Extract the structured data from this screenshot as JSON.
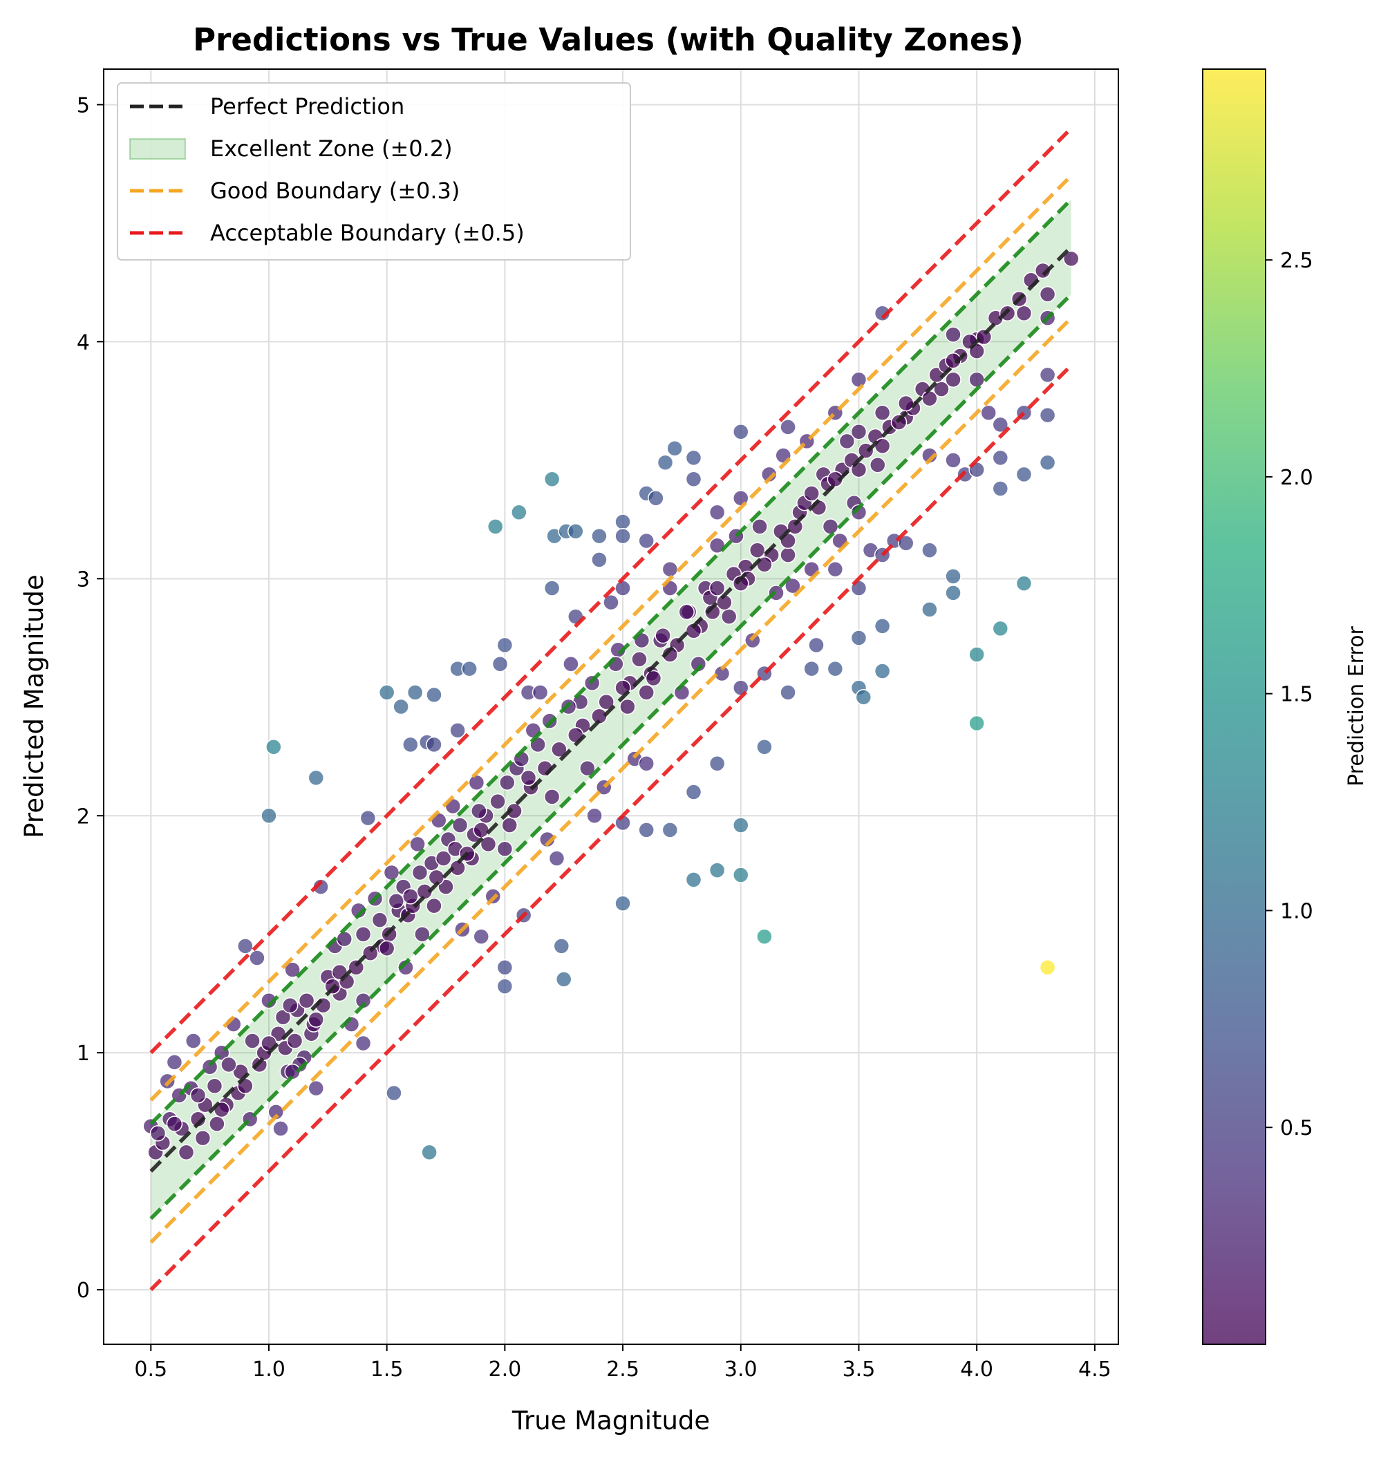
{
  "chart_data": {
    "type": "scatter",
    "title": "Predictions vs True Values (with Quality Zones)",
    "xlabel": "True Magnitude",
    "ylabel": "Predicted Magnitude",
    "xlim": [
      0.3,
      4.6
    ],
    "ylim": [
      -0.23,
      5.15
    ],
    "xticks": [
      0.5,
      1.0,
      1.5,
      2.0,
      2.5,
      3.0,
      3.5,
      4.0,
      4.5
    ],
    "xtick_labels": [
      "0.5",
      "1.0",
      "1.5",
      "2.0",
      "2.5",
      "3.0",
      "3.5",
      "4.0",
      "4.5"
    ],
    "yticks": [
      0,
      1,
      2,
      3,
      4,
      5
    ],
    "ytick_labels": [
      "0",
      "1",
      "2",
      "3",
      "4",
      "5"
    ],
    "grid": true,
    "legend_position": "top-left",
    "legend": [
      {
        "label": "Perfect Prediction",
        "style": "dashed-line",
        "color": "#222222"
      },
      {
        "label": "Excellent Zone (±0.2)",
        "style": "patch",
        "color": "#2ca02c"
      },
      {
        "label": "Good Boundary (±0.3)",
        "style": "dashed-line",
        "color": "#f5a623"
      },
      {
        "label": "Acceptable Boundary (±0.5)",
        "style": "dashed-line",
        "color": "#e8191b"
      }
    ],
    "reference_lines": {
      "x_range": [
        0.5,
        4.4
      ],
      "perfect_offset": 0,
      "excellent_band": 0.2,
      "good_offset": 0.3,
      "acceptable_offset": 0.5
    },
    "colors": {
      "perfect": "#222222",
      "excellent_fill": "#2ca02c",
      "excellent_line": "#1a8a1a",
      "good": "#f5a623",
      "acceptable": "#e8191b",
      "point_edge": "#ffffff"
    },
    "colorbar": {
      "label": "Prediction Error",
      "colormap": "viridis",
      "range": [
        0.0,
        2.94
      ],
      "ticks": [
        0.5,
        1.0,
        1.5,
        2.0,
        2.5
      ],
      "tick_labels": [
        "0.5",
        "1.0",
        "1.5",
        "2.0",
        "2.5"
      ]
    },
    "points": [
      [
        0.5,
        0.69
      ],
      [
        0.52,
        0.58
      ],
      [
        0.55,
        0.62
      ],
      [
        0.57,
        0.88
      ],
      [
        0.6,
        0.96
      ],
      [
        0.62,
        0.82
      ],
      [
        0.65,
        0.58
      ],
      [
        0.68,
        1.05
      ],
      [
        0.7,
        0.72
      ],
      [
        0.72,
        0.64
      ],
      [
        0.75,
        0.94
      ],
      [
        0.78,
        0.7
      ],
      [
        0.8,
        1.0
      ],
      [
        0.82,
        0.78
      ],
      [
        0.85,
        1.12
      ],
      [
        0.88,
        0.92
      ],
      [
        0.9,
        1.45
      ],
      [
        0.92,
        0.72
      ],
      [
        0.95,
        1.4
      ],
      [
        0.96,
        0.95
      ],
      [
        1.0,
        1.22
      ],
      [
        1.0,
        2.0
      ],
      [
        1.02,
        2.29
      ],
      [
        1.03,
        0.75
      ],
      [
        1.05,
        0.68
      ],
      [
        1.07,
        1.02
      ],
      [
        1.08,
        0.92
      ],
      [
        1.1,
        1.35
      ],
      [
        1.12,
        1.18
      ],
      [
        1.15,
        0.98
      ],
      [
        1.18,
        1.08
      ],
      [
        1.2,
        0.85
      ],
      [
        1.2,
        2.16
      ],
      [
        1.22,
        1.7
      ],
      [
        1.25,
        1.32
      ],
      [
        1.28,
        1.45
      ],
      [
        1.3,
        1.25
      ],
      [
        1.32,
        1.48
      ],
      [
        1.35,
        1.12
      ],
      [
        1.38,
        1.6
      ],
      [
        1.4,
        1.22
      ],
      [
        1.4,
        1.04
      ],
      [
        1.42,
        1.99
      ],
      [
        1.45,
        1.65
      ],
      [
        1.48,
        1.45
      ],
      [
        1.5,
        2.52
      ],
      [
        1.52,
        1.76
      ],
      [
        1.53,
        0.83
      ],
      [
        1.55,
        1.6
      ],
      [
        1.56,
        2.46
      ],
      [
        1.58,
        1.36
      ],
      [
        1.6,
        2.3
      ],
      [
        1.62,
        2.52
      ],
      [
        1.63,
        1.88
      ],
      [
        1.65,
        1.5
      ],
      [
        1.67,
        2.31
      ],
      [
        1.68,
        0.58
      ],
      [
        1.7,
        2.51
      ],
      [
        1.7,
        2.3
      ],
      [
        1.72,
        1.98
      ],
      [
        1.75,
        1.7
      ],
      [
        1.78,
        2.04
      ],
      [
        1.8,
        2.62
      ],
      [
        1.8,
        2.36
      ],
      [
        1.82,
        1.52
      ],
      [
        1.85,
        2.62
      ],
      [
        1.86,
        1.82
      ],
      [
        1.88,
        2.14
      ],
      [
        1.9,
        1.49
      ],
      [
        1.92,
        2.0
      ],
      [
        1.95,
        1.66
      ],
      [
        1.96,
        3.22
      ],
      [
        1.98,
        2.64
      ],
      [
        2.0,
        2.72
      ],
      [
        2.0,
        1.28
      ],
      [
        2.0,
        1.36
      ],
      [
        2.02,
        1.96
      ],
      [
        2.05,
        2.2
      ],
      [
        2.06,
        3.28
      ],
      [
        2.08,
        1.58
      ],
      [
        2.1,
        2.52
      ],
      [
        2.12,
        2.36
      ],
      [
        2.15,
        2.52
      ],
      [
        2.18,
        1.9
      ],
      [
        2.2,
        2.96
      ],
      [
        2.2,
        3.42
      ],
      [
        2.21,
        3.18
      ],
      [
        2.22,
        1.82
      ],
      [
        2.24,
        1.45
      ],
      [
        2.25,
        1.31
      ],
      [
        2.26,
        3.2
      ],
      [
        2.28,
        2.64
      ],
      [
        2.3,
        2.84
      ],
      [
        2.3,
        3.2
      ],
      [
        2.32,
        2.48
      ],
      [
        2.35,
        2.2
      ],
      [
        2.38,
        2.0
      ],
      [
        2.4,
        3.08
      ],
      [
        2.4,
        3.18
      ],
      [
        2.42,
        2.12
      ],
      [
        2.45,
        2.9
      ],
      [
        2.48,
        2.7
      ],
      [
        2.5,
        3.24
      ],
      [
        2.5,
        3.18
      ],
      [
        2.5,
        2.96
      ],
      [
        2.5,
        1.97
      ],
      [
        2.5,
        1.63
      ],
      [
        2.52,
        2.46
      ],
      [
        2.55,
        2.24
      ],
      [
        2.58,
        2.74
      ],
      [
        2.6,
        3.16
      ],
      [
        2.6,
        3.36
      ],
      [
        2.6,
        2.22
      ],
      [
        2.6,
        1.94
      ],
      [
        2.62,
        2.6
      ],
      [
        2.64,
        3.34
      ],
      [
        2.66,
        2.74
      ],
      [
        2.68,
        3.49
      ],
      [
        2.7,
        2.96
      ],
      [
        2.7,
        3.04
      ],
      [
        2.7,
        1.94
      ],
      [
        2.72,
        3.55
      ],
      [
        2.75,
        2.52
      ],
      [
        2.78,
        2.86
      ],
      [
        2.8,
        3.51
      ],
      [
        2.8,
        3.42
      ],
      [
        2.8,
        2.1
      ],
      [
        2.8,
        1.73
      ],
      [
        2.82,
        2.64
      ],
      [
        2.85,
        2.96
      ],
      [
        2.88,
        2.86
      ],
      [
        2.9,
        3.28
      ],
      [
        2.9,
        3.14
      ],
      [
        2.9,
        2.22
      ],
      [
        2.9,
        1.77
      ],
      [
        2.92,
        2.6
      ],
      [
        2.95,
        2.84
      ],
      [
        2.98,
        3.18
      ],
      [
        3.0,
        3.62
      ],
      [
        3.0,
        3.34
      ],
      [
        3.0,
        2.54
      ],
      [
        3.0,
        1.96
      ],
      [
        3.0,
        1.75
      ],
      [
        3.02,
        3.05
      ],
      [
        3.05,
        2.74
      ],
      [
        3.08,
        3.22
      ],
      [
        3.1,
        2.6
      ],
      [
        3.1,
        2.29
      ],
      [
        3.1,
        1.49
      ],
      [
        3.12,
        3.44
      ],
      [
        3.15,
        2.94
      ],
      [
        3.18,
        3.52
      ],
      [
        3.2,
        3.64
      ],
      [
        3.2,
        3.1
      ],
      [
        3.2,
        2.52
      ],
      [
        3.22,
        2.97
      ],
      [
        3.25,
        3.28
      ],
      [
        3.28,
        3.58
      ],
      [
        3.3,
        3.04
      ],
      [
        3.3,
        2.62
      ],
      [
        3.32,
        2.72
      ],
      [
        3.35,
        3.44
      ],
      [
        3.38,
        3.22
      ],
      [
        3.4,
        3.7
      ],
      [
        3.4,
        3.04
      ],
      [
        3.4,
        2.62
      ],
      [
        3.42,
        3.16
      ],
      [
        3.45,
        3.58
      ],
      [
        3.48,
        3.32
      ],
      [
        3.5,
        3.84
      ],
      [
        3.5,
        3.62
      ],
      [
        3.5,
        3.28
      ],
      [
        3.5,
        2.96
      ],
      [
        3.5,
        2.75
      ],
      [
        3.5,
        2.54
      ],
      [
        3.52,
        2.5
      ],
      [
        3.55,
        3.12
      ],
      [
        3.58,
        3.48
      ],
      [
        3.6,
        4.12
      ],
      [
        3.6,
        3.7
      ],
      [
        3.6,
        3.1
      ],
      [
        3.6,
        2.8
      ],
      [
        3.6,
        2.61
      ],
      [
        3.65,
        3.16
      ],
      [
        3.7,
        3.68
      ],
      [
        3.7,
        3.15
      ],
      [
        3.8,
        3.52
      ],
      [
        3.8,
        3.12
      ],
      [
        3.8,
        2.87
      ],
      [
        3.85,
        3.8
      ],
      [
        3.9,
        4.03
      ],
      [
        3.9,
        3.84
      ],
      [
        3.9,
        3.5
      ],
      [
        3.9,
        3.01
      ],
      [
        3.9,
        2.94
      ],
      [
        3.95,
        3.44
      ],
      [
        4.0,
        4.01
      ],
      [
        4.0,
        3.84
      ],
      [
        4.0,
        3.46
      ],
      [
        4.0,
        2.68
      ],
      [
        4.0,
        2.39
      ],
      [
        4.05,
        3.7
      ],
      [
        4.1,
        3.65
      ],
      [
        4.1,
        3.51
      ],
      [
        4.1,
        3.38
      ],
      [
        4.1,
        2.79
      ],
      [
        4.2,
        4.12
      ],
      [
        4.2,
        3.7
      ],
      [
        4.2,
        3.44
      ],
      [
        4.2,
        2.98
      ],
      [
        4.3,
        4.2
      ],
      [
        4.3,
        4.1
      ],
      [
        4.3,
        3.86
      ],
      [
        4.3,
        3.69
      ],
      [
        4.3,
        3.49
      ],
      [
        4.3,
        1.36
      ],
      [
        4.4,
        4.35
      ],
      [
        0.53,
        0.66
      ],
      [
        0.58,
        0.72
      ],
      [
        0.63,
        0.68
      ],
      [
        0.67,
        0.85
      ],
      [
        0.73,
        0.78
      ],
      [
        0.77,
        0.86
      ],
      [
        0.83,
        0.95
      ],
      [
        0.87,
        0.83
      ],
      [
        0.93,
        1.05
      ],
      [
        0.98,
        1.0
      ],
      [
        1.04,
        1.08
      ],
      [
        1.06,
        1.15
      ],
      [
        1.09,
        1.2
      ],
      [
        1.11,
        1.05
      ],
      [
        1.13,
        0.95
      ],
      [
        1.16,
        1.22
      ],
      [
        1.19,
        1.12
      ],
      [
        1.23,
        1.2
      ],
      [
        1.27,
        1.28
      ],
      [
        1.33,
        1.3
      ],
      [
        1.37,
        1.36
      ],
      [
        1.43,
        1.42
      ],
      [
        1.47,
        1.56
      ],
      [
        1.51,
        1.5
      ],
      [
        1.54,
        1.64
      ],
      [
        1.57,
        1.7
      ],
      [
        1.59,
        1.58
      ],
      [
        1.61,
        1.62
      ],
      [
        1.64,
        1.76
      ],
      [
        1.66,
        1.68
      ],
      [
        1.69,
        1.8
      ],
      [
        1.71,
        1.74
      ],
      [
        1.74,
        1.82
      ],
      [
        1.76,
        1.9
      ],
      [
        1.79,
        1.86
      ],
      [
        1.81,
        1.96
      ],
      [
        1.84,
        1.84
      ],
      [
        1.87,
        1.92
      ],
      [
        1.89,
        2.02
      ],
      [
        1.93,
        1.88
      ],
      [
        1.97,
        2.06
      ],
      [
        2.01,
        2.14
      ],
      [
        2.04,
        2.02
      ],
      [
        2.07,
        2.24
      ],
      [
        2.11,
        2.12
      ],
      [
        2.14,
        2.3
      ],
      [
        2.17,
        2.2
      ],
      [
        2.19,
        2.4
      ],
      [
        2.23,
        2.28
      ],
      [
        2.27,
        2.46
      ],
      [
        2.33,
        2.38
      ],
      [
        2.37,
        2.56
      ],
      [
        2.43,
        2.48
      ],
      [
        2.47,
        2.64
      ],
      [
        2.53,
        2.56
      ],
      [
        2.57,
        2.66
      ],
      [
        2.63,
        2.58
      ],
      [
        2.67,
        2.76
      ],
      [
        2.73,
        2.72
      ],
      [
        2.77,
        2.86
      ],
      [
        2.83,
        2.8
      ],
      [
        2.87,
        2.92
      ],
      [
        2.93,
        2.9
      ],
      [
        2.97,
        3.02
      ],
      [
        3.03,
        3.0
      ],
      [
        3.07,
        3.12
      ],
      [
        3.13,
        3.1
      ],
      [
        3.17,
        3.2
      ],
      [
        3.23,
        3.22
      ],
      [
        3.27,
        3.32
      ],
      [
        3.33,
        3.3
      ],
      [
        3.37,
        3.4
      ],
      [
        3.43,
        3.46
      ],
      [
        3.47,
        3.5
      ],
      [
        3.53,
        3.54
      ],
      [
        3.57,
        3.6
      ],
      [
        3.63,
        3.64
      ],
      [
        3.67,
        3.66
      ],
      [
        3.73,
        3.72
      ],
      [
        3.77,
        3.8
      ],
      [
        3.83,
        3.86
      ],
      [
        3.87,
        3.9
      ],
      [
        3.93,
        3.94
      ],
      [
        3.97,
        4.0
      ],
      [
        4.03,
        4.02
      ],
      [
        4.08,
        4.1
      ],
      [
        4.13,
        4.12
      ],
      [
        4.18,
        4.18
      ],
      [
        4.23,
        4.26
      ],
      [
        4.28,
        4.3
      ],
      [
        0.6,
        0.7
      ],
      [
        0.7,
        0.82
      ],
      [
        0.8,
        0.76
      ],
      [
        0.9,
        0.86
      ],
      [
        1.0,
        1.04
      ],
      [
        1.1,
        0.92
      ],
      [
        1.2,
        1.14
      ],
      [
        1.3,
        1.34
      ],
      [
        1.4,
        1.5
      ],
      [
        1.5,
        1.44
      ],
      [
        1.6,
        1.66
      ],
      [
        1.7,
        1.62
      ],
      [
        1.8,
        1.78
      ],
      [
        1.9,
        1.94
      ],
      [
        2.0,
        1.86
      ],
      [
        2.1,
        2.16
      ],
      [
        2.2,
        2.08
      ],
      [
        2.3,
        2.34
      ],
      [
        2.4,
        2.42
      ],
      [
        2.5,
        2.54
      ],
      [
        2.6,
        2.52
      ],
      [
        2.7,
        2.68
      ],
      [
        2.8,
        2.78
      ],
      [
        2.9,
        2.96
      ],
      [
        3.0,
        2.98
      ],
      [
        3.1,
        3.06
      ],
      [
        3.2,
        3.16
      ],
      [
        3.3,
        3.36
      ],
      [
        3.4,
        3.42
      ],
      [
        3.5,
        3.46
      ],
      [
        3.6,
        3.56
      ],
      [
        3.7,
        3.74
      ],
      [
        3.8,
        3.76
      ],
      [
        3.9,
        3.92
      ],
      [
        4.0,
        3.96
      ]
    ]
  }
}
